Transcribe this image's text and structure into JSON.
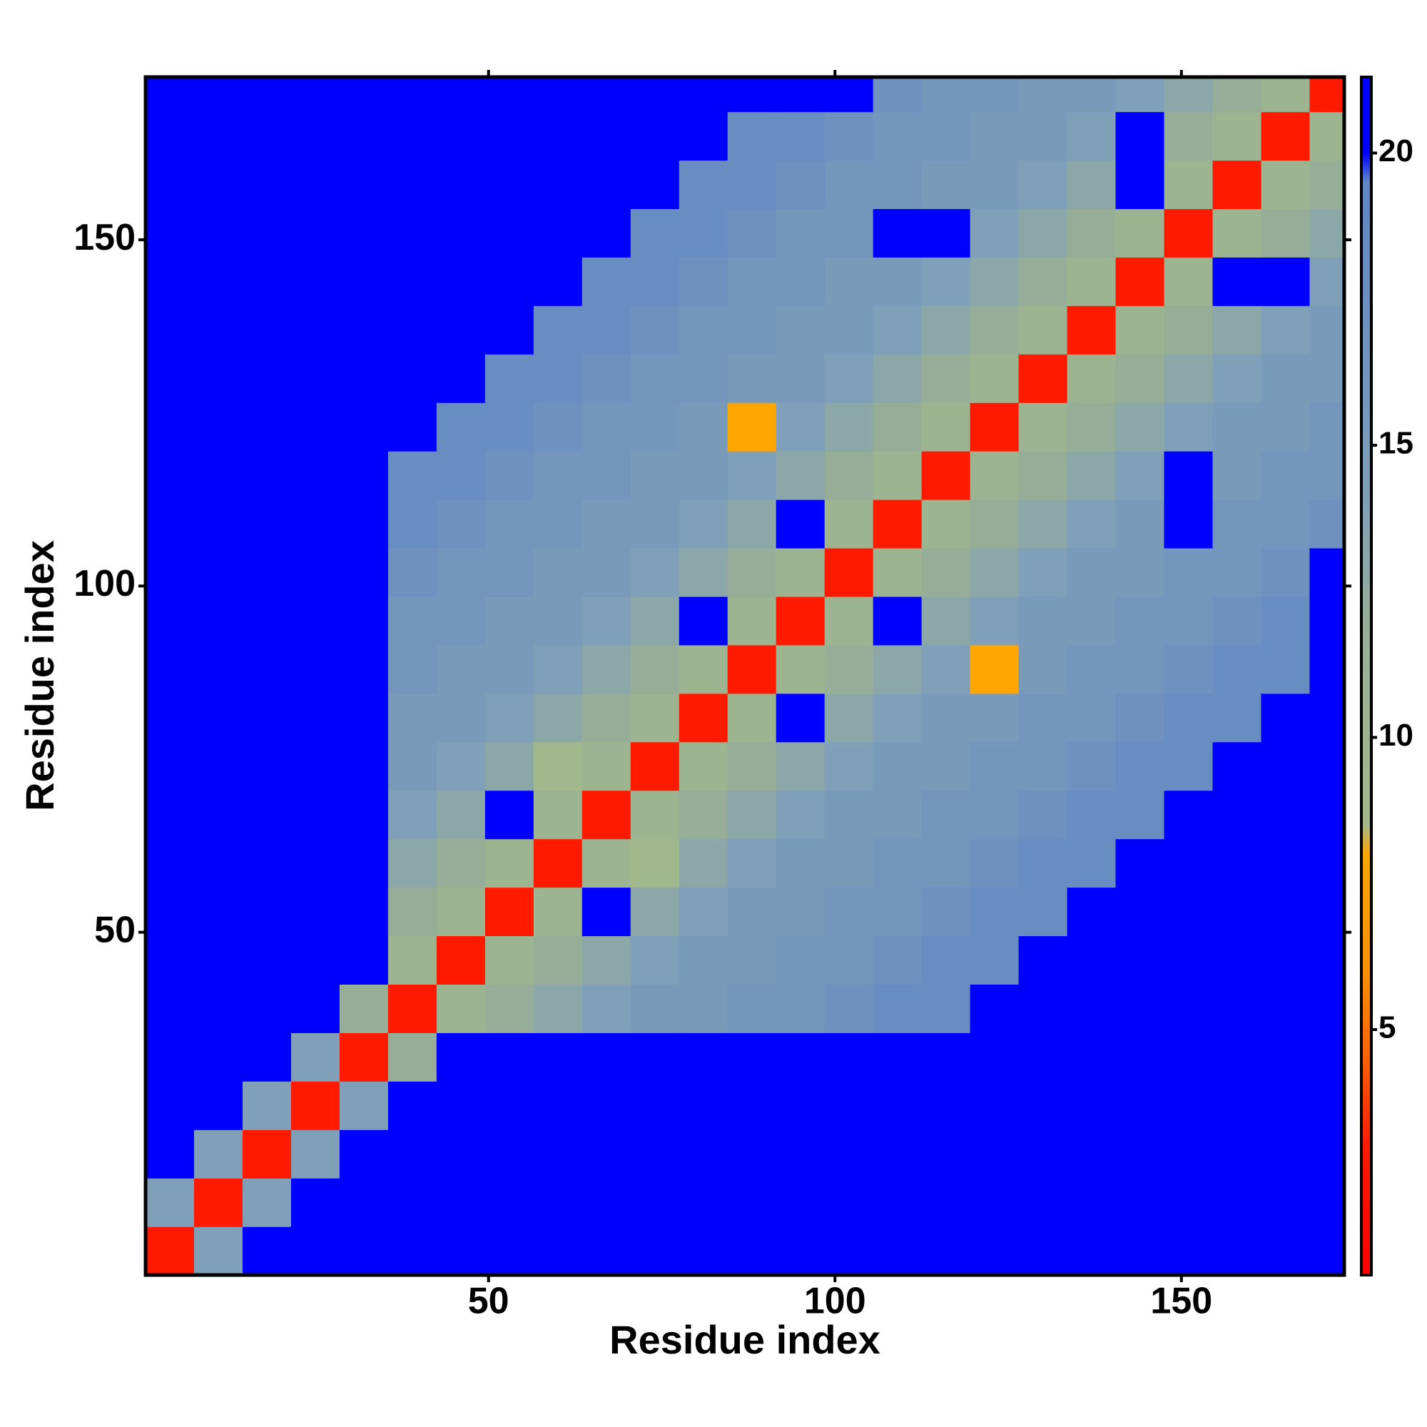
{
  "chart_data": {
    "type": "heatmap",
    "xlabel": "Residue index",
    "ylabel": "Residue index",
    "bins": [
      0.5,
      7.5,
      14.5,
      21.5,
      28.5,
      35.5,
      42.5,
      49.5,
      56.5,
      63.5,
      70.5,
      77.5,
      84.5,
      91.5,
      98.5,
      105.5,
      112.5,
      119.5,
      126.5,
      133.5,
      140.5,
      147.5,
      154.5,
      161.5,
      168.5,
      173.5
    ],
    "xlim": [
      0.5,
      173.5
    ],
    "ylim": [
      0.5,
      173.5
    ],
    "xticks": [
      50,
      100,
      150
    ],
    "yticks": [
      50,
      100,
      150
    ],
    "zlim": [
      0.8,
      21.3
    ],
    "zticks": [
      5,
      10,
      15,
      20
    ],
    "colorscale": [
      [
        0.8,
        "#ff0000"
      ],
      [
        3,
        "#ff1a00"
      ],
      [
        4.5,
        "#ff6000"
      ],
      [
        6,
        "#ff9000"
      ],
      [
        8,
        "#ffa500"
      ],
      [
        8.5,
        "#a3b88a"
      ],
      [
        12,
        "#96ae98"
      ],
      [
        14,
        "#809fb8"
      ],
      [
        19.5,
        "#5f86c4"
      ],
      [
        20,
        "#0000ff"
      ],
      [
        21.3,
        "#0000ff"
      ]
    ],
    "z": [
      [
        3,
        14,
        22,
        22,
        22,
        22,
        22,
        22,
        22,
        22,
        22,
        22,
        22,
        22,
        22,
        22,
        22,
        22,
        22,
        22,
        22,
        22,
        22,
        22,
        22
      ],
      [
        14,
        3,
        14,
        22,
        22,
        22,
        22,
        22,
        22,
        22,
        22,
        22,
        22,
        22,
        22,
        22,
        22,
        22,
        22,
        22,
        22,
        22,
        22,
        22,
        22
      ],
      [
        22,
        14,
        3,
        14,
        22,
        22,
        22,
        22,
        22,
        22,
        22,
        22,
        22,
        22,
        22,
        22,
        22,
        22,
        22,
        22,
        22,
        22,
        22,
        22,
        22
      ],
      [
        22,
        22,
        14,
        3,
        14,
        22,
        22,
        22,
        22,
        22,
        22,
        22,
        22,
        22,
        22,
        22,
        22,
        22,
        22,
        22,
        22,
        22,
        22,
        22,
        22
      ],
      [
        22,
        22,
        22,
        14,
        3,
        12,
        22,
        22,
        22,
        22,
        22,
        22,
        22,
        22,
        22,
        22,
        22,
        22,
        22,
        22,
        22,
        22,
        22,
        22,
        22
      ],
      [
        22,
        22,
        22,
        22,
        12,
        3,
        10,
        12,
        13,
        14,
        15,
        15,
        16,
        16,
        17,
        18,
        18,
        20,
        22,
        22,
        22,
        22,
        22,
        22,
        22
      ],
      [
        22,
        22,
        22,
        22,
        22,
        10,
        3,
        10,
        12,
        13,
        14,
        15,
        15,
        16,
        16,
        17,
        18,
        18,
        20,
        22,
        22,
        22,
        22,
        22,
        22
      ],
      [
        22,
        22,
        22,
        22,
        22,
        12,
        10,
        3,
        10,
        22,
        13,
        14,
        15,
        15,
        16,
        16,
        17,
        18,
        18,
        20,
        22,
        22,
        22,
        22,
        22
      ],
      [
        22,
        22,
        22,
        22,
        22,
        13,
        12,
        10,
        3,
        10,
        9,
        13,
        14,
        15,
        15,
        16,
        16,
        17,
        18,
        18,
        20,
        22,
        22,
        22,
        22
      ],
      [
        22,
        22,
        22,
        22,
        22,
        14,
        13,
        22,
        10,
        3,
        10,
        12,
        13,
        14,
        15,
        15,
        16,
        16,
        17,
        18,
        18,
        20,
        22,
        22,
        22
      ],
      [
        22,
        22,
        22,
        22,
        22,
        15,
        14,
        13,
        9,
        10,
        3,
        10,
        12,
        13,
        14,
        15,
        15,
        16,
        16,
        17,
        18,
        18,
        20,
        22,
        22
      ],
      [
        22,
        22,
        22,
        22,
        22,
        15,
        15,
        14,
        13,
        12,
        10,
        3,
        10,
        22,
        13,
        14,
        15,
        15,
        16,
        16,
        17,
        18,
        18,
        20,
        22
      ],
      [
        22,
        22,
        22,
        22,
        22,
        16,
        15,
        15,
        14,
        13,
        12,
        10,
        3,
        10,
        12,
        13,
        14,
        8,
        15,
        16,
        16,
        17,
        18,
        18,
        22
      ],
      [
        22,
        22,
        22,
        22,
        22,
        16,
        16,
        15,
        15,
        14,
        13,
        22,
        10,
        3,
        10,
        22,
        13,
        14,
        15,
        15,
        16,
        16,
        17,
        18,
        22
      ],
      [
        22,
        22,
        22,
        22,
        22,
        17,
        16,
        16,
        15,
        15,
        14,
        13,
        12,
        10,
        3,
        10,
        12,
        13,
        14,
        15,
        15,
        16,
        16,
        17,
        22
      ],
      [
        22,
        22,
        22,
        22,
        22,
        18,
        17,
        16,
        16,
        15,
        15,
        14,
        13,
        22,
        10,
        3,
        10,
        12,
        13,
        14,
        15,
        22,
        16,
        16,
        17
      ],
      [
        22,
        22,
        22,
        22,
        22,
        18,
        18,
        17,
        16,
        16,
        15,
        15,
        14,
        13,
        12,
        10,
        3,
        10,
        12,
        13,
        14,
        22,
        15,
        16,
        16
      ],
      [
        22,
        22,
        22,
        22,
        22,
        20,
        18,
        18,
        17,
        16,
        16,
        15,
        8,
        14,
        13,
        12,
        10,
        3,
        10,
        12,
        13,
        14,
        15,
        15,
        16
      ],
      [
        22,
        22,
        22,
        22,
        22,
        22,
        20,
        18,
        18,
        17,
        16,
        16,
        15,
        15,
        14,
        13,
        12,
        10,
        3,
        10,
        12,
        13,
        14,
        15,
        15
      ],
      [
        22,
        22,
        22,
        22,
        22,
        22,
        22,
        20,
        18,
        18,
        17,
        16,
        16,
        15,
        15,
        14,
        13,
        12,
        10,
        3,
        10,
        12,
        13,
        14,
        15
      ],
      [
        22,
        22,
        22,
        22,
        22,
        22,
        22,
        22,
        20,
        18,
        18,
        17,
        16,
        16,
        15,
        15,
        14,
        13,
        12,
        10,
        3,
        10,
        22,
        22,
        14
      ],
      [
        22,
        22,
        22,
        22,
        22,
        22,
        22,
        22,
        22,
        20,
        18,
        18,
        17,
        16,
        16,
        22,
        22,
        14,
        13,
        12,
        10,
        3,
        10,
        12,
        13
      ],
      [
        22,
        22,
        22,
        22,
        22,
        22,
        22,
        22,
        22,
        22,
        20,
        18,
        18,
        17,
        16,
        16,
        15,
        15,
        14,
        13,
        22,
        10,
        3,
        10,
        12
      ],
      [
        22,
        22,
        22,
        22,
        22,
        22,
        22,
        22,
        22,
        22,
        22,
        20,
        18,
        18,
        17,
        16,
        16,
        15,
        15,
        14,
        22,
        12,
        10,
        3,
        10
      ],
      [
        22,
        22,
        22,
        22,
        22,
        22,
        22,
        22,
        22,
        22,
        22,
        22,
        22,
        22,
        22,
        17,
        16,
        16,
        15,
        15,
        14,
        13,
        12,
        10,
        3
      ]
    ]
  }
}
